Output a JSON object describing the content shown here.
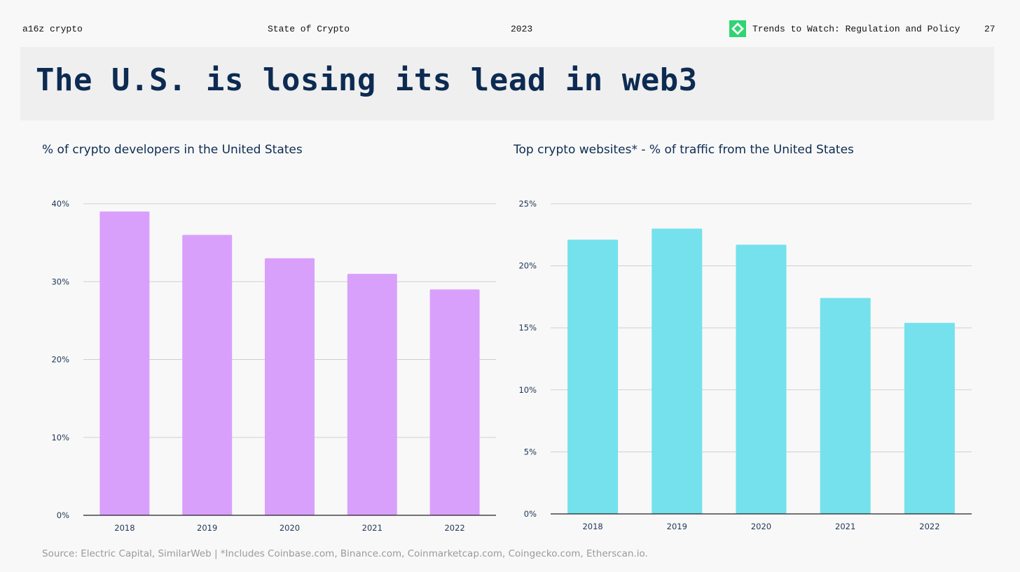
{
  "header": {
    "brand": "a16z crypto",
    "report": "State of Crypto",
    "year": "2023",
    "section": "Trends to Watch: Regulation and Policy",
    "page_number": "27",
    "logo_icon": "diamond-logo-icon",
    "logo_color": "#2ed573"
  },
  "title": "The U.S. is losing its lead in web3",
  "footer": {
    "source": "Source: Electric Capital, SimilarWeb | *Includes Coinbase.com, Binance.com, Coinmarketcap.com, Coingecko.com, Etherscan.io."
  },
  "colors": {
    "title": "#0d2b52",
    "left_bar": "#d9a0fb",
    "right_bar": "#75e1ec"
  },
  "chart_data": [
    {
      "type": "bar",
      "title": "% of crypto developers in the United States",
      "categories": [
        "2018",
        "2019",
        "2020",
        "2021",
        "2022"
      ],
      "values": [
        39,
        36,
        33,
        31,
        29
      ],
      "yticks": [
        0,
        10,
        20,
        30,
        40
      ],
      "ytick_labels": [
        "0%",
        "10%",
        "20%",
        "30%",
        "40%"
      ],
      "ylim": [
        0,
        40
      ],
      "xlabel": "",
      "ylabel": "",
      "grid": true,
      "color": "#d9a0fb"
    },
    {
      "type": "bar",
      "title": "Top crypto websites* - % of traffic from the United States",
      "categories": [
        "2018",
        "2019",
        "2020",
        "2021",
        "2022"
      ],
      "values": [
        22.1,
        23.0,
        21.7,
        17.4,
        15.4
      ],
      "yticks": [
        0,
        5,
        10,
        15,
        20,
        25
      ],
      "ytick_labels": [
        "0%",
        "5%",
        "10%",
        "15%",
        "20%",
        "25%"
      ],
      "ylim": [
        0,
        25
      ],
      "xlabel": "",
      "ylabel": "",
      "grid": true,
      "color": "#75e1ec"
    }
  ]
}
